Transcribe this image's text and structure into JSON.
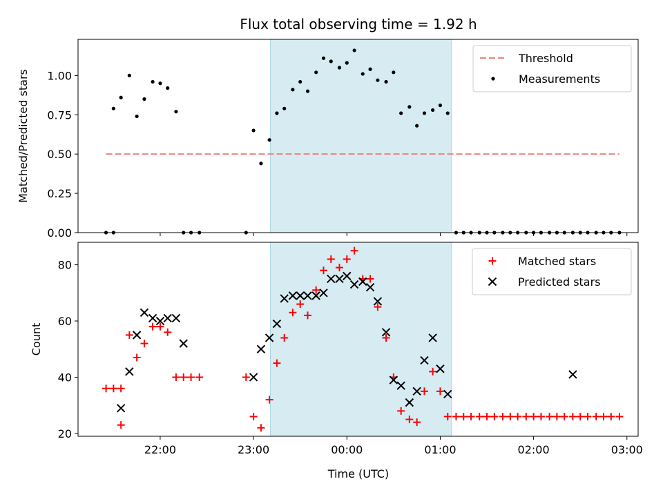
{
  "chart_data": {
    "type": "scatter",
    "title": "Flux total observing time = 1.92 h",
    "xlabel": "Time (UTC)",
    "x_ticks": [
      "22:00",
      "23:00",
      "00:00",
      "01:00",
      "02:00",
      "03:00"
    ],
    "x_tick_hours": [
      22,
      23,
      24,
      25,
      26,
      27
    ],
    "xlim_hours": [
      21.12,
      27.12
    ],
    "highlight_span_hours": [
      23.18,
      25.12
    ],
    "colors": {
      "threshold": "#f08080",
      "measurements": "#000000",
      "matched": "#ff0000",
      "predicted": "#000000",
      "highlight": "#add8e6"
    },
    "panels": [
      {
        "ylabel": "Matched/Predicted stars",
        "ylim": [
          0,
          1.23
        ],
        "y_ticks": [
          "0.00",
          "0.25",
          "0.50",
          "0.75",
          "1.00"
        ],
        "y_tick_values": [
          0,
          0.25,
          0.5,
          0.75,
          1.0
        ],
        "legend_position": "upper-right",
        "series": [
          {
            "name": "Threshold",
            "kind": "dashed-line",
            "x": [
              21.42,
              26.92
            ],
            "y": [
              0.5,
              0.5
            ]
          },
          {
            "name": "Measurements",
            "kind": "dot",
            "x": [
              21.42,
              21.5,
              21.5,
              21.58,
              21.67,
              21.75,
              21.83,
              21.92,
              22.0,
              22.08,
              22.17,
              22.25,
              22.33,
              22.42,
              22.92,
              23.0,
              23.08,
              23.17,
              23.25,
              23.33,
              23.42,
              23.5,
              23.58,
              23.67,
              23.75,
              23.83,
              23.92,
              24.0,
              24.08,
              24.17,
              24.25,
              24.33,
              24.42,
              24.5,
              24.58,
              24.67,
              24.75,
              24.83,
              24.92,
              25.0,
              25.08,
              25.17,
              25.25,
              25.33,
              25.42,
              25.5,
              25.58,
              25.67,
              25.75,
              25.83,
              25.92,
              26.0,
              26.08,
              26.17,
              26.25,
              26.33,
              26.42,
              26.5,
              26.58,
              26.67,
              26.75,
              26.83,
              26.92
            ],
            "y": [
              0.0,
              0.0,
              0.79,
              0.86,
              1.0,
              0.74,
              0.85,
              0.96,
              0.95,
              0.92,
              0.77,
              0.0,
              0.0,
              0.0,
              0.0,
              0.65,
              0.44,
              0.59,
              0.76,
              0.79,
              0.91,
              0.96,
              0.9,
              1.02,
              1.11,
              1.09,
              1.05,
              1.08,
              1.16,
              1.01,
              1.04,
              0.97,
              0.96,
              1.02,
              0.76,
              0.8,
              0.68,
              0.76,
              0.78,
              0.81,
              0.76,
              0.0,
              0.0,
              0.0,
              0.0,
              0.0,
              0.0,
              0.0,
              0.0,
              0.0,
              0.0,
              0.0,
              0.0,
              0.0,
              0.0,
              0.0,
              0.0,
              0.0,
              0.0,
              0.0,
              0.0,
              0.0,
              0.0
            ]
          }
        ]
      },
      {
        "ylabel": "Count",
        "ylim": [
          19,
          88
        ],
        "y_ticks": [
          "20",
          "40",
          "60",
          "80"
        ],
        "y_tick_values": [
          20,
          40,
          60,
          80
        ],
        "legend_position": "upper-right",
        "series": [
          {
            "name": "Matched stars",
            "kind": "plus",
            "x": [
              21.42,
              21.5,
              21.58,
              21.67,
              21.75,
              21.83,
              21.92,
              22.0,
              22.08,
              22.17,
              22.25,
              22.33,
              22.42,
              22.92,
              23.0,
              23.08,
              23.17,
              23.25,
              23.33,
              23.42,
              23.5,
              23.58,
              23.67,
              23.75,
              23.83,
              23.92,
              24.0,
              24.08,
              24.17,
              24.25,
              24.33,
              24.42,
              24.5,
              24.58,
              24.67,
              24.75,
              24.83,
              24.92,
              25.0,
              25.08,
              25.17,
              25.25,
              25.33,
              25.42,
              25.5,
              25.58,
              25.67,
              25.75,
              25.83,
              25.92,
              26.0,
              26.08,
              26.17,
              26.25,
              26.33,
              26.42,
              26.5,
              26.58,
              26.67,
              26.75,
              26.83,
              26.92,
              21.58
            ],
            "y": [
              36,
              36,
              23,
              55,
              47,
              52,
              58,
              58,
              56,
              40,
              40,
              40,
              40,
              40,
              26,
              22,
              32,
              45,
              54,
              63,
              66,
              62,
              71,
              78,
              82,
              79,
              82,
              85,
              75,
              75,
              65,
              54,
              40,
              28,
              25,
              24,
              35,
              42,
              35,
              26,
              26,
              26,
              26,
              26,
              26,
              26,
              26,
              26,
              26,
              26,
              26,
              26,
              26,
              26,
              26,
              26,
              26,
              26,
              26,
              26,
              26,
              26,
              36
            ]
          },
          {
            "name": "Predicted stars",
            "kind": "x",
            "x": [
              21.58,
              21.67,
              21.75,
              21.83,
              21.92,
              22.0,
              22.08,
              22.17,
              22.25,
              23.0,
              23.08,
              23.17,
              23.25,
              23.33,
              23.42,
              23.5,
              23.58,
              23.67,
              23.75,
              23.83,
              23.92,
              24.0,
              24.08,
              24.17,
              24.25,
              24.33,
              24.42,
              24.5,
              24.58,
              24.67,
              24.75,
              24.83,
              24.92,
              25.0,
              25.08,
              26.42
            ],
            "y": [
              29,
              42,
              55,
              63,
              61,
              60,
              61,
              61,
              52,
              40,
              50,
              54,
              59,
              68,
              69,
              69,
              69,
              69,
              70,
              75,
              75,
              76,
              73,
              74,
              72,
              67,
              56,
              39,
              37,
              31,
              35,
              46,
              54,
              43,
              34,
              41
            ]
          }
        ]
      }
    ]
  }
}
